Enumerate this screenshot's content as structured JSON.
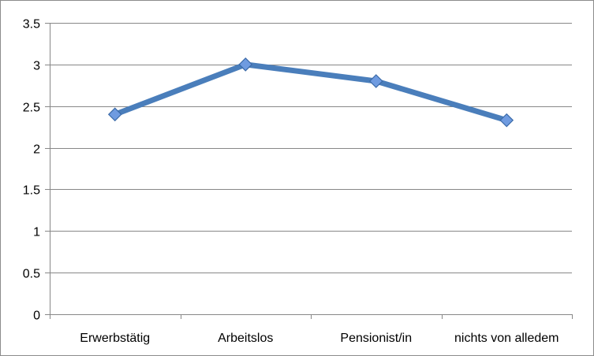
{
  "chart_data": {
    "type": "line",
    "title": "",
    "xlabel": "",
    "ylabel": "",
    "categories": [
      "Erwerbstätig",
      "Arbeitslos",
      "Pensionist/in",
      "nichts von alledem"
    ],
    "series": [
      {
        "values": [
          2.4,
          3.0,
          2.8,
          2.33
        ],
        "color": "#4a7ebb",
        "marker": "diamond",
        "marker_color": "#6f9be0"
      }
    ],
    "ylim": [
      0,
      3.5
    ],
    "yticks": [
      "0",
      "0.5",
      "1",
      "1.5",
      "2",
      "2.5",
      "3",
      "3.5"
    ],
    "grid": true,
    "legend": "none"
  }
}
